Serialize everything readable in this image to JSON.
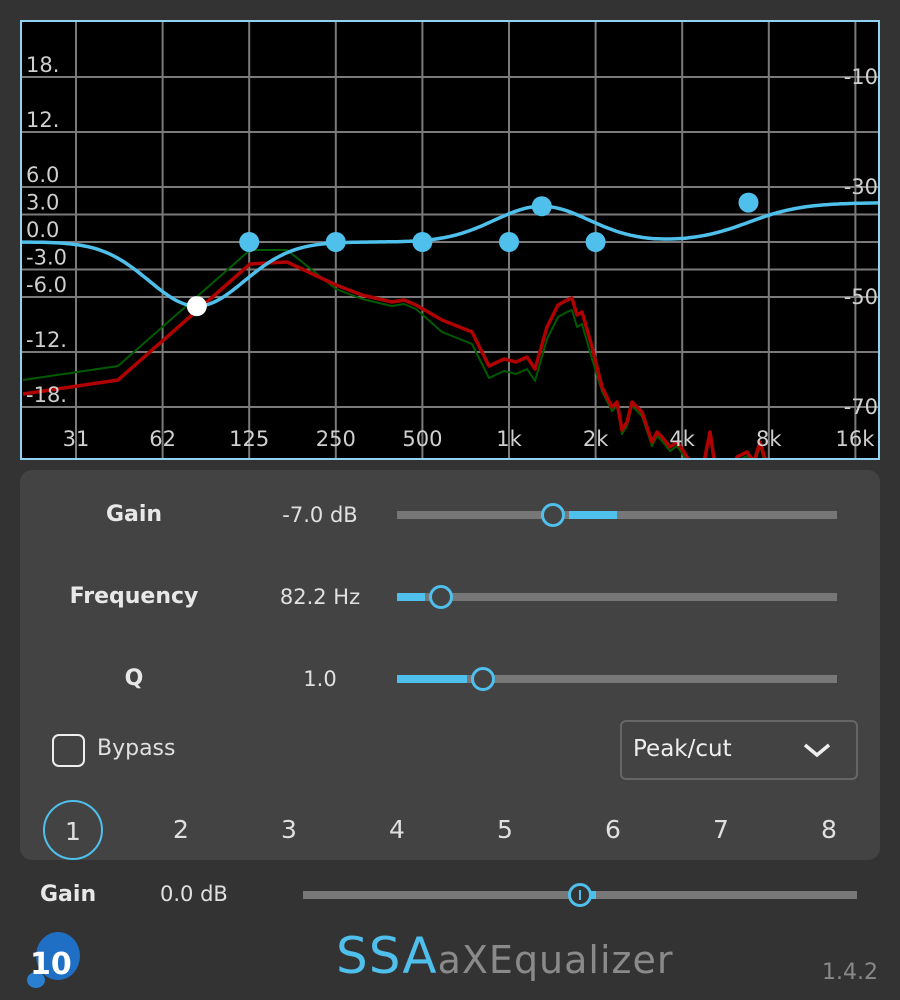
{
  "graph": {
    "left_axis_labels": [
      "18.",
      "12.",
      "6.0",
      "3.0",
      "0.0",
      "-3.0",
      "-6.0",
      "-12.",
      "-18."
    ],
    "left_axis_values": [
      18,
      12,
      6,
      3,
      0,
      -3,
      -6,
      -12,
      -18
    ],
    "right_axis_labels": [
      "-10",
      "-30",
      "-50",
      "-70"
    ],
    "right_axis_values": [
      -10,
      -30,
      -50,
      -70
    ],
    "freq_labels": [
      "31",
      "62",
      "125",
      "250",
      "500",
      "1k",
      "2k",
      "4k",
      "8k",
      "16k"
    ],
    "freq_values": [
      31.25,
      62.5,
      125,
      250,
      500,
      1000,
      2000,
      4000,
      8000,
      16000
    ],
    "curve_color": "#4fc0ec",
    "selected_node_color": "#ffffff",
    "spectrum_colors": [
      "#b00000",
      "#005a00"
    ],
    "bands": [
      {
        "freq_hz": 82.2,
        "gain_db": -7.0,
        "q": 1.0,
        "type": "peak"
      },
      {
        "freq_hz": 125,
        "gain_db": 0,
        "q": 1.0,
        "type": "peak"
      },
      {
        "freq_hz": 250,
        "gain_db": 0,
        "q": 1.0,
        "type": "peak"
      },
      {
        "freq_hz": 500,
        "gain_db": 0,
        "q": 1.0,
        "type": "peak"
      },
      {
        "freq_hz": 1000,
        "gain_db": 0,
        "q": 1.0,
        "type": "peak"
      },
      {
        "freq_hz": 1300,
        "gain_db": 3.9,
        "q": 1.0,
        "type": "peak"
      },
      {
        "freq_hz": 2000,
        "gain_db": 0,
        "q": 1.0,
        "type": "peak"
      },
      {
        "freq_hz": 6800,
        "gain_db": 4.3,
        "q": 1.0,
        "type": "shelf"
      }
    ]
  },
  "controls": {
    "gain": {
      "label": "Gain",
      "value": "-7.0 dB",
      "fraction": 0.355
    },
    "frequency": {
      "label": "Frequency",
      "value": "82.2 Hz",
      "fraction": 0.1
    },
    "q": {
      "label": "Q",
      "value": "1.0",
      "fraction": 0.195
    },
    "bypass": {
      "label": "Bypass",
      "checked": false
    },
    "filter_type": {
      "selected": "Peak/cut"
    },
    "band_tabs": [
      "1",
      "2",
      "3",
      "4",
      "5",
      "6",
      "7",
      "8"
    ],
    "selected_band": "1"
  },
  "master": {
    "label": "Gain",
    "value": "0.0 dB",
    "fraction": 0.5
  },
  "footer": {
    "brand_prefix": "SSA",
    "brand_name": "aXEqualizer",
    "version": "1.4.2",
    "logo_text": "10"
  }
}
